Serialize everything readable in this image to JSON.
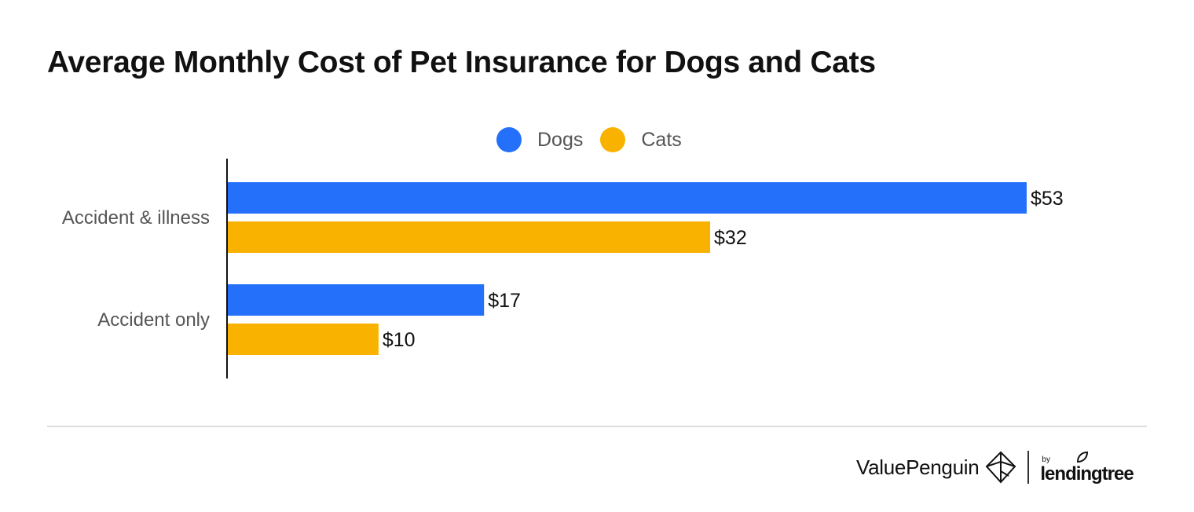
{
  "chart_data": {
    "type": "bar",
    "orientation": "horizontal",
    "title": "Average Monthly Cost of Pet Insurance for Dogs and Cats",
    "categories": [
      "Accident & illness",
      "Accident only"
    ],
    "series": [
      {
        "name": "Dogs",
        "color": "#2570FA",
        "values": [
          53,
          17
        ],
        "labels": [
          "$53",
          "$17"
        ]
      },
      {
        "name": "Cats",
        "color": "#F9B200",
        "values": [
          32,
          10
        ],
        "labels": [
          "$32",
          "$10"
        ]
      }
    ],
    "xlim": [
      0,
      53
    ],
    "grid": false,
    "legend_position": "top-center"
  },
  "footer": {
    "brand_name": "ValuePenguin",
    "brand_by": "by",
    "brand_partner": "lendingtree",
    "logo_icon": "valuepenguin-logo-icon",
    "partner_icon": "lendingtree-leaf-icon"
  }
}
